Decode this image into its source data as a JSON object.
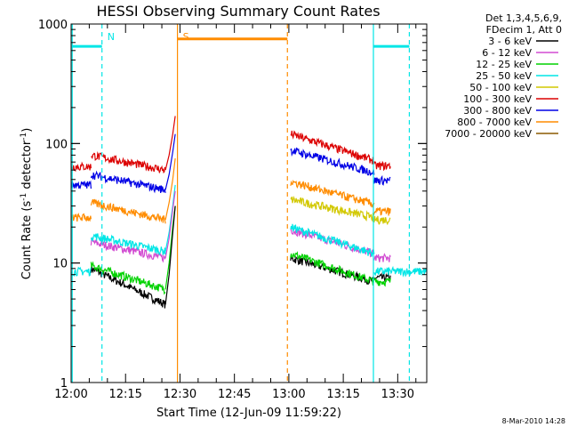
{
  "chart_data": {
    "type": "line",
    "title": "HESSI Observing Summary Count Rates",
    "xlabel": "Start Time (12-Jun-09 11:59:22)",
    "ylabel_parts": [
      "Count Rate (s",
      "-1",
      " detector",
      "-1",
      ")"
    ],
    "x_ticks": [
      "12:00",
      "12:15",
      "12:30",
      "12:45",
      "13:00",
      "13:15",
      "13:30"
    ],
    "x_tick_minutes": [
      0,
      15,
      30,
      45,
      60,
      75,
      90
    ],
    "xlim_minutes": [
      0,
      98
    ],
    "y_ticks": [
      "1",
      "10",
      "100",
      "1000"
    ],
    "y_tick_values": [
      1,
      10,
      100,
      1000
    ],
    "ylim": [
      1,
      1000
    ],
    "y_scale": "log",
    "footer_date": "8-Mar-2010 14:28",
    "legend_header": [
      "Det 1,3,4,5,6,9,",
      "FDecim 1, Att 0"
    ],
    "legend_placement": "right",
    "series": [
      {
        "name": "3 - 6 keV",
        "color": "#000000"
      },
      {
        "name": "6 - 12 keV",
        "color": "#d24cd2"
      },
      {
        "name": "12 - 25 keV",
        "color": "#00d200"
      },
      {
        "name": "25 - 50 keV",
        "color": "#00e6e6"
      },
      {
        "name": "50 - 100 keV",
        "color": "#d2c800"
      },
      {
        "name": "100 - 300 keV",
        "color": "#dc0000"
      },
      {
        "name": "300 - 800 keV",
        "color": "#0000e6"
      },
      {
        "name": "800 - 7000 keV",
        "color": "#ff8c00"
      },
      {
        "name": "7000 - 20000 keV",
        "color": "#8c5a00"
      }
    ],
    "traces": [
      {
        "series": "3 - 6 keV",
        "segments": [
          {
            "x0": 5.5,
            "x1": 26,
            "y0": 9,
            "y1": 4.5
          },
          {
            "x0": 60.5,
            "x1": 83.5,
            "y0": 11,
            "y1": 7
          },
          {
            "x0": 83.5,
            "x1": 88,
            "y0": 7.5,
            "y1": 7.5
          }
        ]
      },
      {
        "series": "6 - 12 keV",
        "segments": [
          {
            "x0": 5.5,
            "x1": 26,
            "y0": 15,
            "y1": 11
          },
          {
            "x0": 60.5,
            "x1": 83.5,
            "y0": 19,
            "y1": 12
          },
          {
            "x0": 83.5,
            "x1": 88,
            "y0": 11,
            "y1": 11
          }
        ]
      },
      {
        "series": "12 - 25 keV",
        "segments": [
          {
            "x0": 5.5,
            "x1": 26,
            "y0": 9.5,
            "y1": 6
          },
          {
            "x0": 60.5,
            "x1": 83.5,
            "y0": 12,
            "y1": 7
          },
          {
            "x0": 83.5,
            "x1": 88,
            "y0": 7,
            "y1": 7
          }
        ]
      },
      {
        "series": "25 - 50 keV",
        "segments": [
          {
            "x0": 0,
            "x1": 5.5,
            "y0": 8.5,
            "y1": 8.5
          },
          {
            "x0": 5.5,
            "x1": 26,
            "y0": 17,
            "y1": 12.5
          },
          {
            "x0": 60.5,
            "x1": 83.5,
            "y0": 20,
            "y1": 12
          },
          {
            "x0": 83.5,
            "x1": 98,
            "y0": 8.5,
            "y1": 8.5
          }
        ]
      },
      {
        "series": "50 - 100 keV",
        "segments": [
          {
            "x0": 60.5,
            "x1": 83.5,
            "y0": 34,
            "y1": 24
          },
          {
            "x0": 83.5,
            "x1": 88,
            "y0": 23,
            "y1": 23
          }
        ]
      },
      {
        "series": "100 - 300 keV",
        "segments": [
          {
            "x0": 0,
            "x1": 5.5,
            "y0": 64,
            "y1": 64
          },
          {
            "x0": 5.5,
            "x1": 26,
            "y0": 80,
            "y1": 60
          },
          {
            "x0": 60.5,
            "x1": 83.5,
            "y0": 120,
            "y1": 72
          },
          {
            "x0": 83.5,
            "x1": 88,
            "y0": 65,
            "y1": 65
          }
        ]
      },
      {
        "series": "300 - 800 keV",
        "segments": [
          {
            "x0": 0,
            "x1": 5.5,
            "y0": 45,
            "y1": 45
          },
          {
            "x0": 5.5,
            "x1": 26,
            "y0": 55,
            "y1": 41
          },
          {
            "x0": 60.5,
            "x1": 83.5,
            "y0": 88,
            "y1": 57
          },
          {
            "x0": 83.5,
            "x1": 88,
            "y0": 49,
            "y1": 49
          }
        ]
      },
      {
        "series": "800 - 7000 keV",
        "segments": [
          {
            "x0": 0,
            "x1": 5.5,
            "y0": 24,
            "y1": 24
          },
          {
            "x0": 5.5,
            "x1": 26,
            "y0": 32,
            "y1": 23
          },
          {
            "x0": 60.5,
            "x1": 83.5,
            "y0": 48,
            "y1": 31
          },
          {
            "x0": 83.5,
            "x1": 88,
            "y0": 27,
            "y1": 27
          }
        ]
      }
    ],
    "flare_spike": [
      {
        "series": "100 - 300 keV",
        "x": [
          26,
          27,
          28,
          28.7
        ],
        "y": [
          60,
          80,
          120,
          170
        ]
      },
      {
        "series": "300 - 800 keV",
        "x": [
          26,
          27,
          28,
          28.7
        ],
        "y": [
          41,
          55,
          85,
          120
        ]
      },
      {
        "series": "800 - 7000 keV",
        "x": [
          26,
          27,
          28,
          28.7
        ],
        "y": [
          23,
          32,
          50,
          75
        ]
      },
      {
        "series": "25 - 50 keV",
        "x": [
          26,
          27,
          28,
          28.7
        ],
        "y": [
          12.5,
          18,
          30,
          45
        ]
      },
      {
        "series": "6 - 12 keV",
        "x": [
          26,
          27,
          28,
          28.7
        ],
        "y": [
          11,
          16,
          28,
          40
        ]
      },
      {
        "series": "12 - 25 keV",
        "x": [
          26,
          27,
          28,
          28.7
        ],
        "y": [
          6,
          10,
          20,
          30
        ]
      },
      {
        "series": "3 - 6 keV",
        "x": [
          26,
          27,
          28,
          28.7
        ],
        "y": [
          4.5,
          8,
          18,
          30
        ]
      }
    ],
    "markers": [
      {
        "label": "N",
        "x": 8.5,
        "color": "#00e6e6",
        "style": "dashed"
      },
      {
        "label": "S",
        "x": 29.3,
        "color": "#ff8c00",
        "style": "solid"
      },
      {
        "label": "",
        "x": 59.6,
        "color": "#ff8c00",
        "style": "dashed"
      },
      {
        "label": "",
        "x": 0.3,
        "color": "#00e6e6",
        "style": "solid"
      },
      {
        "label": "",
        "x": 83.3,
        "color": "#00e6e6",
        "style": "solid"
      },
      {
        "label": "",
        "x": 93.2,
        "color": "#00e6e6",
        "style": "dashed"
      }
    ],
    "bars": [
      {
        "color": "#00e6e6",
        "x0": 0.3,
        "x1": 8.5,
        "y": 650
      },
      {
        "color": "#ff8c00",
        "x0": 29.3,
        "x1": 59.6,
        "y": 750
      },
      {
        "color": "#00e6e6",
        "x0": 83.3,
        "x1": 93.2,
        "y": 650
      }
    ],
    "grid": false
  }
}
